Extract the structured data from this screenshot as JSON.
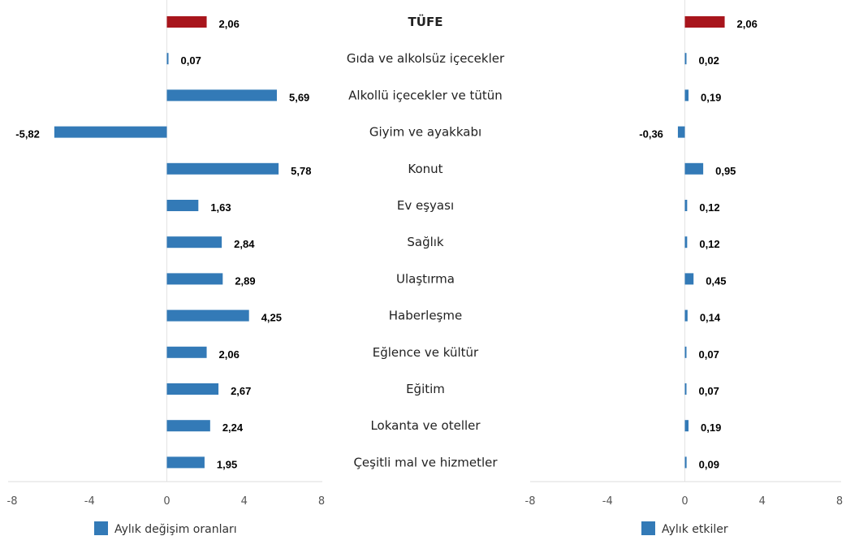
{
  "chart_data": [
    {
      "type": "bar",
      "orientation": "horizontal",
      "categories": [
        "TÜFE",
        "Gıda ve alkolsüz içecekler",
        "Alkollü içecekler ve tütün",
        "Giyim ve ayakkabı",
        "Konut",
        "Ev eşyası",
        "Sağlık",
        "Ulaştırma",
        "Haberleşme",
        "Eğlence ve kültür",
        "Eğitim",
        "Lokanta ve oteller",
        "Çeşitli mal ve hizmetler"
      ],
      "series": [
        {
          "name": "Aylık değişim oranları",
          "values": [
            2.06,
            0.07,
            5.69,
            -5.82,
            5.78,
            1.63,
            2.84,
            2.89,
            4.25,
            2.06,
            2.67,
            2.24,
            1.95
          ]
        }
      ],
      "labels": [
        "2,06",
        "0,07",
        "5,69",
        "-5,82",
        "5,78",
        "1,63",
        "2,84",
        "2,89",
        "4,25",
        "2,06",
        "2,67",
        "2,24",
        "1,95"
      ],
      "xlim": [
        -8,
        8
      ],
      "xticks": [
        "-8",
        "-4",
        "0",
        "4",
        "8"
      ],
      "grid": false,
      "legend": "bottom",
      "colors": {
        "bar": "#337ab7",
        "highlight": "#a8151c"
      }
    },
    {
      "type": "bar",
      "orientation": "horizontal",
      "categories": [
        "TÜFE",
        "Gıda ve alkolsüz içecekler",
        "Alkollü içecekler ve tütün",
        "Giyim ve ayakkabı",
        "Konut",
        "Ev eşyası",
        "Sağlık",
        "Ulaştırma",
        "Haberleşme",
        "Eğlence ve kültür",
        "Eğitim",
        "Lokanta ve oteller",
        "Çeşitli mal ve hizmetler"
      ],
      "series": [
        {
          "name": "Aylık etkiler",
          "values": [
            2.06,
            0.02,
            0.19,
            -0.36,
            0.95,
            0.12,
            0.12,
            0.45,
            0.14,
            0.07,
            0.07,
            0.19,
            0.09
          ]
        }
      ],
      "labels": [
        "2,06",
        "0,02",
        "0,19",
        "-0,36",
        "0,95",
        "0,12",
        "0,12",
        "0,45",
        "0,14",
        "0,07",
        "0,07",
        "0,19",
        "0,09"
      ],
      "xlim": [
        -8,
        8
      ],
      "xticks": [
        "-8",
        "-4",
        "0",
        "4",
        "8"
      ],
      "grid": false,
      "legend": "bottom",
      "colors": {
        "bar": "#337ab7",
        "highlight": "#a8151c"
      }
    }
  ]
}
